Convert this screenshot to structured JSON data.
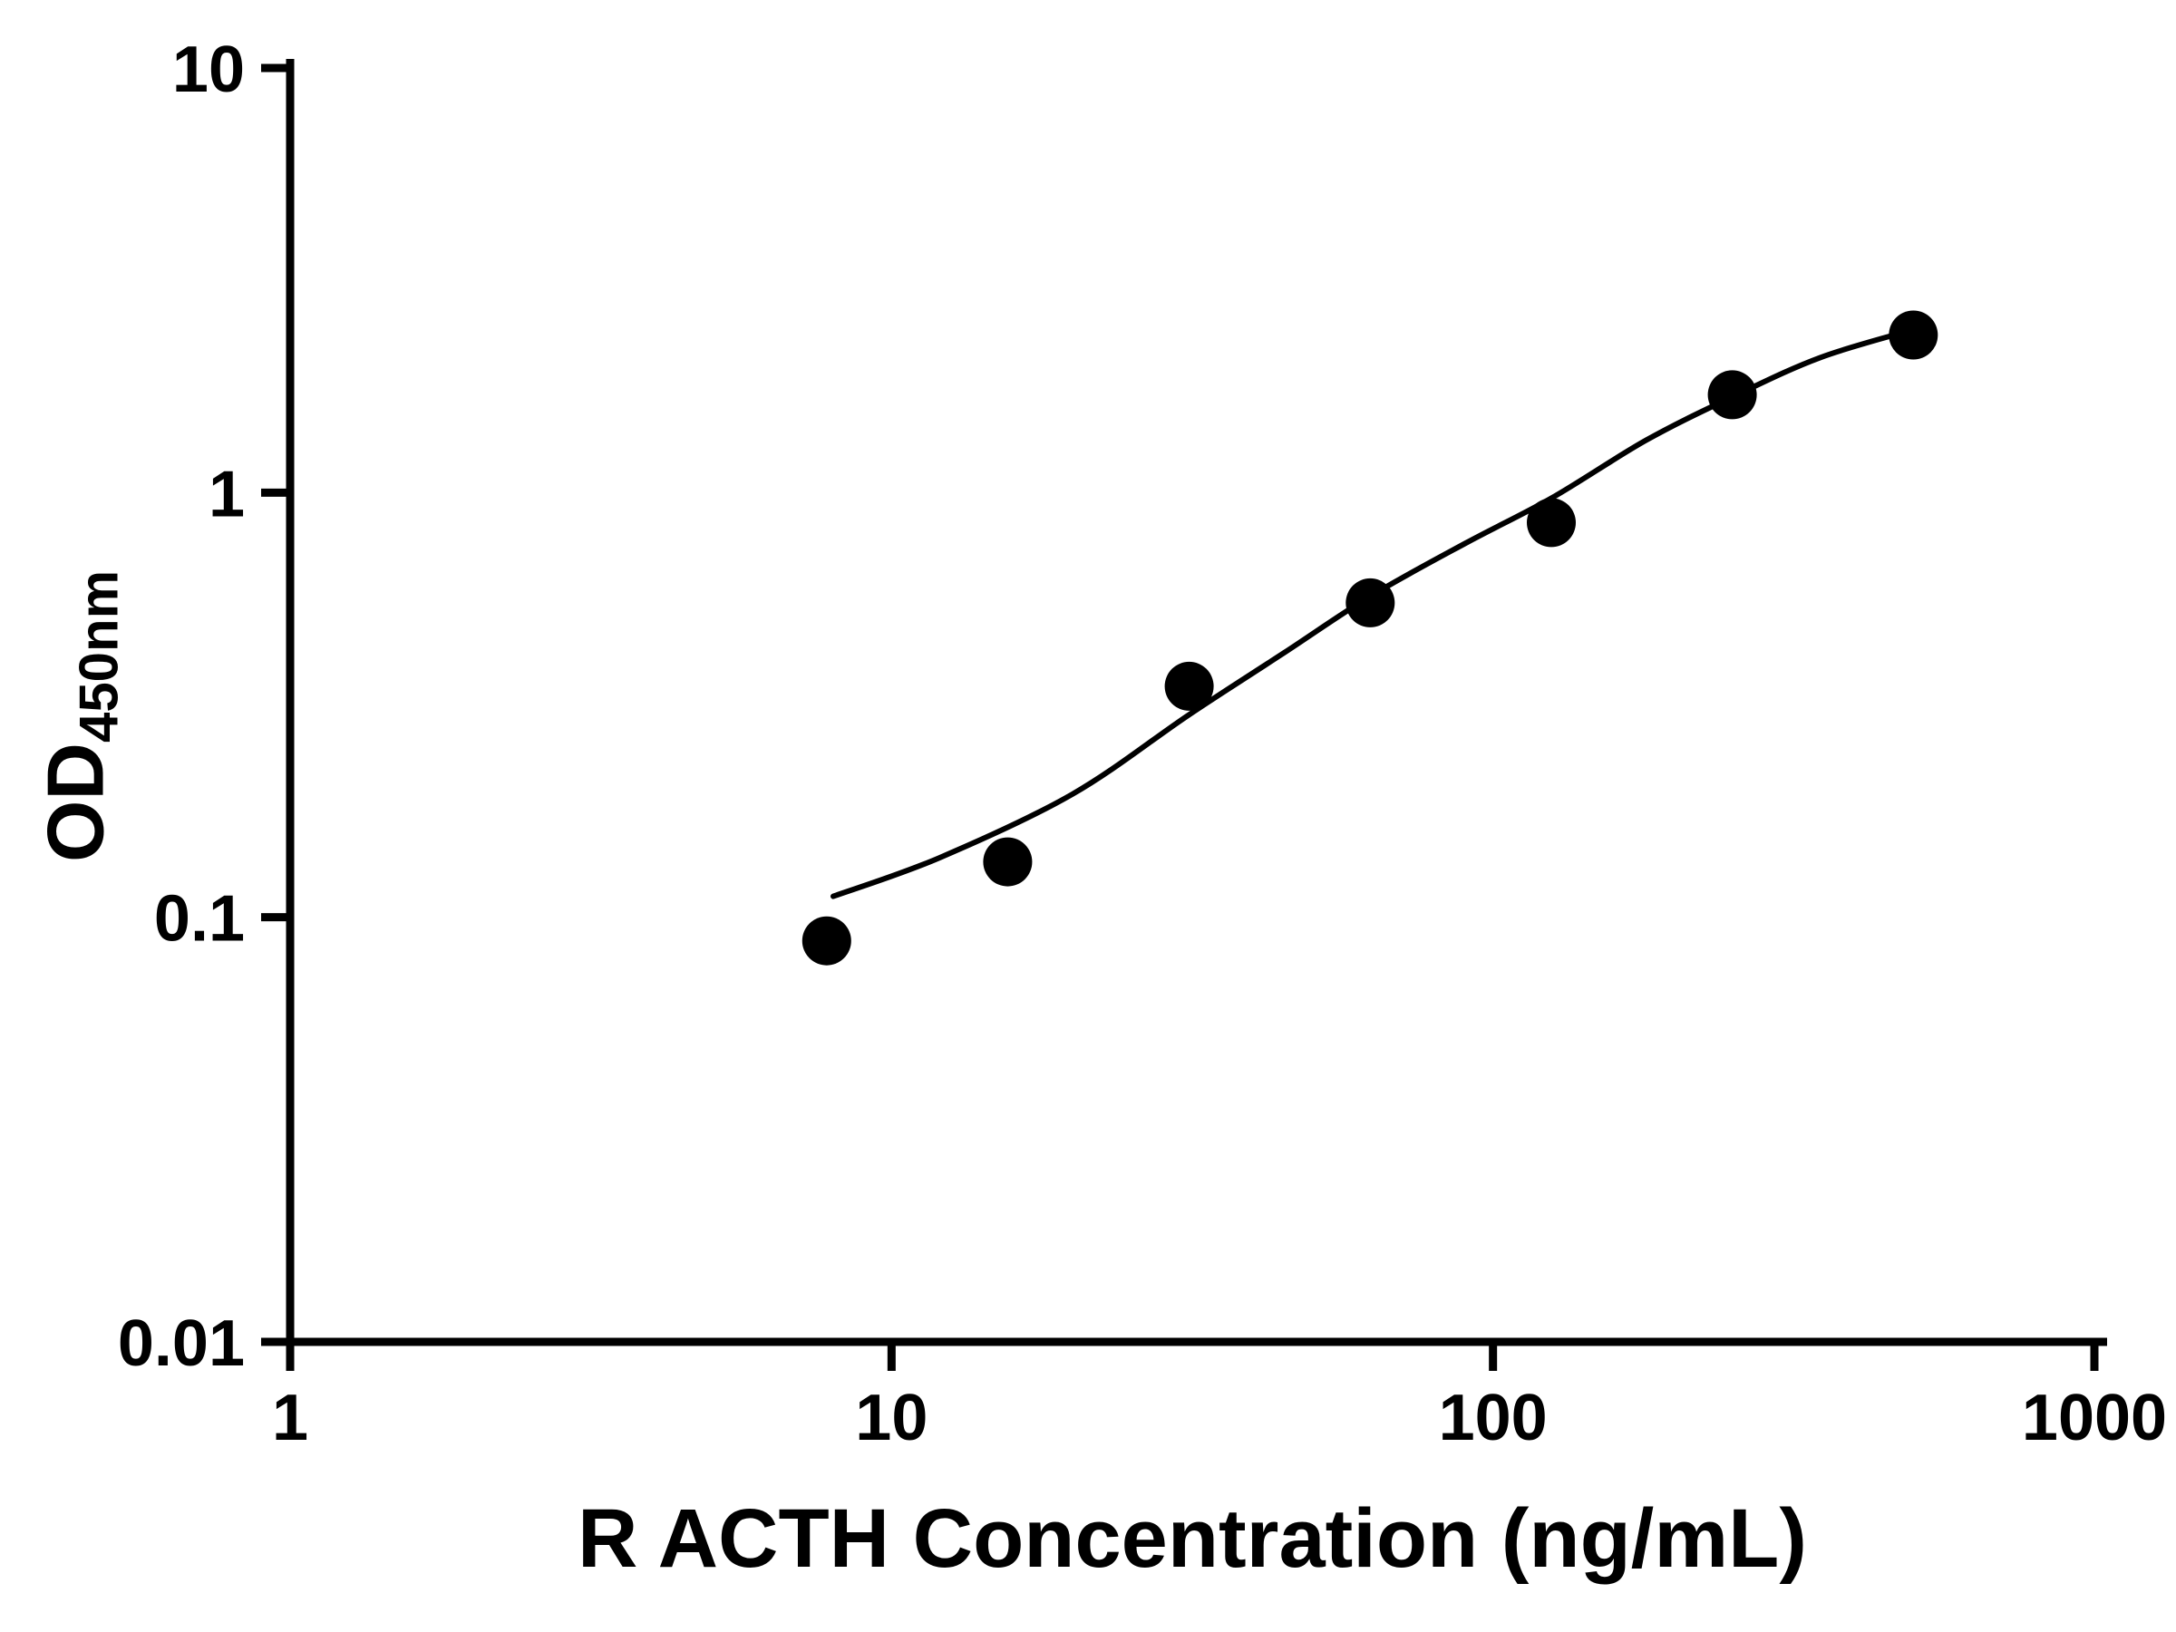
{
  "chart_data": {
    "type": "scatter",
    "title": "",
    "xlabel": "R ACTH Concentration (ng/mL)",
    "ylabel_main": "OD",
    "ylabel_sub": "450nm",
    "x_scale": "log",
    "y_scale": "log",
    "xlim": [
      1,
      1000
    ],
    "ylim": [
      0.01,
      10
    ],
    "grid": "off",
    "legend": "none",
    "x_ticks": {
      "values": [
        1,
        10,
        100,
        1000
      ],
      "labels": [
        "1",
        "10",
        "100",
        "1000"
      ]
    },
    "y_ticks": {
      "values": [
        0.01,
        0.1,
        1,
        10
      ],
      "labels": [
        "0.01",
        "0.1",
        "1",
        "10"
      ]
    },
    "series": [
      {
        "type": "scatter",
        "x": [
          7.8,
          15.6,
          31.25,
          62.5,
          125,
          250,
          500
        ],
        "y": [
          0.088,
          0.135,
          0.35,
          0.55,
          0.85,
          1.7,
          2.35
        ]
      }
    ],
    "fit_curve": {
      "type": "4PL-smooth",
      "points": [
        [
          8,
          0.112
        ],
        [
          12,
          0.138
        ],
        [
          20,
          0.195
        ],
        [
          31.25,
          0.3
        ],
        [
          45,
          0.42
        ],
        [
          62.5,
          0.57
        ],
        [
          90,
          0.76
        ],
        [
          125,
          0.97
        ],
        [
          180,
          1.33
        ],
        [
          250,
          1.68
        ],
        [
          350,
          2.08
        ],
        [
          500,
          2.42
        ]
      ]
    },
    "marker_color": "#000000",
    "line_color": "#000000",
    "axis_color": "#000000",
    "background": "#ffffff"
  }
}
